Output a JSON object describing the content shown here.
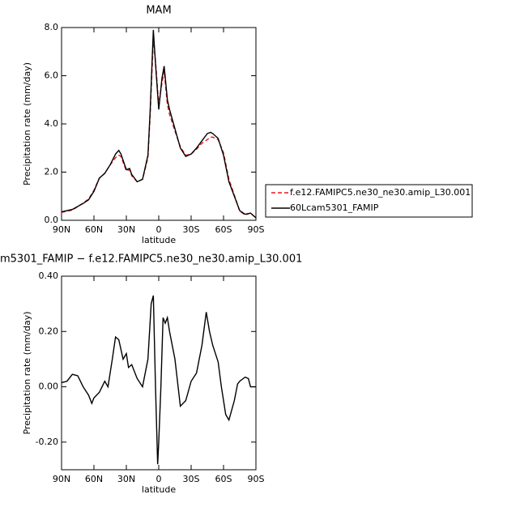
{
  "chart_data": [
    {
      "type": "line",
      "title": "MAM",
      "xlabel": "latitude",
      "ylabel": "Precipitation rate (mm/day)",
      "x": [
        90,
        80,
        70,
        65,
        60,
        55,
        50,
        45,
        40,
        37,
        35,
        30,
        27,
        25,
        20,
        15,
        10,
        8,
        5,
        3,
        0,
        -3,
        -5,
        -8,
        -10,
        -15,
        -20,
        -25,
        -30,
        -35,
        -40,
        -45,
        -48,
        -50,
        -55,
        -60,
        -65,
        -70,
        -75,
        -80,
        -85,
        -90
      ],
      "series": [
        {
          "name": "f.e12.FAMIPC5.ne30_ne30.amip_L30.001",
          "color": "#e41a1c",
          "linestyle": "dashed",
          "values": [
            0.33,
            0.42,
            0.72,
            0.88,
            1.25,
            1.75,
            1.95,
            2.3,
            2.6,
            2.7,
            2.65,
            2.05,
            2.1,
            1.85,
            1.6,
            1.7,
            2.6,
            4.3,
            7.5,
            6.6,
            4.8,
            5.7,
            6.2,
            4.8,
            4.4,
            3.7,
            3.05,
            2.7,
            2.75,
            2.95,
            3.2,
            3.35,
            3.45,
            3.45,
            3.35,
            2.8,
            1.7,
            1.05,
            0.38,
            0.22,
            0.3,
            0.1
          ]
        },
        {
          "name": "60Lcam5301_FAMIP",
          "color": "#000000",
          "linestyle": "solid",
          "values": [
            0.35,
            0.45,
            0.7,
            0.85,
            1.2,
            1.75,
            1.95,
            2.3,
            2.75,
            2.9,
            2.75,
            2.1,
            2.15,
            1.9,
            1.6,
            1.7,
            2.7,
            4.5,
            7.9,
            6.5,
            4.6,
            5.9,
            6.4,
            5.0,
            4.6,
            3.8,
            3.0,
            2.65,
            2.75,
            3.0,
            3.3,
            3.6,
            3.65,
            3.6,
            3.4,
            2.7,
            1.6,
            1.0,
            0.4,
            0.25,
            0.3,
            0.1
          ]
        }
      ],
      "xlim": [
        90,
        -90
      ],
      "ylim": [
        0,
        8
      ],
      "xticks": [
        {
          "value": 90,
          "label": "90N"
        },
        {
          "value": 60,
          "label": "60N"
        },
        {
          "value": 30,
          "label": "30N"
        },
        0,
        {
          "value": -30,
          "label": "30S"
        },
        {
          "value": -60,
          "label": "60S"
        },
        {
          "value": -90,
          "label": "90S"
        }
      ],
      "yticks": [
        {
          "value": 0,
          "label": "0.0"
        },
        {
          "value": 2,
          "label": "2.0"
        },
        {
          "value": 4,
          "label": "4.0"
        },
        {
          "value": 6,
          "label": "6.0"
        },
        {
          "value": 8,
          "label": "8.0"
        }
      ],
      "legend": "right"
    },
    {
      "type": "line",
      "title": "m5301_FAMIP − f.e12.FAMIPC5.ne30_ne30.amip_L30.001",
      "xlabel": "latitude",
      "ylabel": "Precipitation rate (mm/day)",
      "x": [
        90,
        85,
        80,
        75,
        70,
        65,
        62,
        60,
        55,
        50,
        47,
        43,
        40,
        37,
        33,
        30,
        28,
        25,
        20,
        15,
        10,
        7,
        5,
        3,
        1,
        0,
        -2,
        -4,
        -6,
        -8,
        -10,
        -15,
        -20,
        -25,
        -30,
        -35,
        -40,
        -44,
        -47,
        -50,
        -55,
        -58,
        -62,
        -65,
        -70,
        -73,
        -75,
        -80,
        -83,
        -85,
        -90
      ],
      "series": [
        {
          "color": "#000000",
          "linestyle": "solid",
          "values": [
            0.015,
            0.02,
            0.045,
            0.04,
            0.0,
            -0.03,
            -0.06,
            -0.04,
            -0.02,
            0.02,
            0.0,
            0.1,
            0.18,
            0.17,
            0.1,
            0.12,
            0.07,
            0.08,
            0.03,
            0.0,
            0.1,
            0.3,
            0.33,
            0.0,
            -0.28,
            -0.2,
            0.0,
            0.25,
            0.23,
            0.25,
            0.2,
            0.1,
            -0.07,
            -0.05,
            0.02,
            0.05,
            0.15,
            0.27,
            0.2,
            0.15,
            0.09,
            0.0,
            -0.1,
            -0.12,
            -0.05,
            0.01,
            0.02,
            0.035,
            0.03,
            0.0,
            0.0
          ]
        }
      ],
      "xlim": [
        90,
        -90
      ],
      "ylim": [
        -0.3,
        0.4
      ],
      "xticks": [
        {
          "value": 90,
          "label": "90N"
        },
        {
          "value": 60,
          "label": "60N"
        },
        {
          "value": 30,
          "label": "30N"
        },
        0,
        {
          "value": -30,
          "label": "30S"
        },
        {
          "value": -60,
          "label": "60S"
        },
        {
          "value": -90,
          "label": "90S"
        }
      ],
      "yticks": [
        {
          "value": -0.2,
          "label": "-0.20"
        },
        {
          "value": 0,
          "label": "0.00"
        },
        {
          "value": 0.2,
          "label": "0.20"
        },
        {
          "value": 0.4,
          "label": "0.40"
        }
      ]
    }
  ]
}
